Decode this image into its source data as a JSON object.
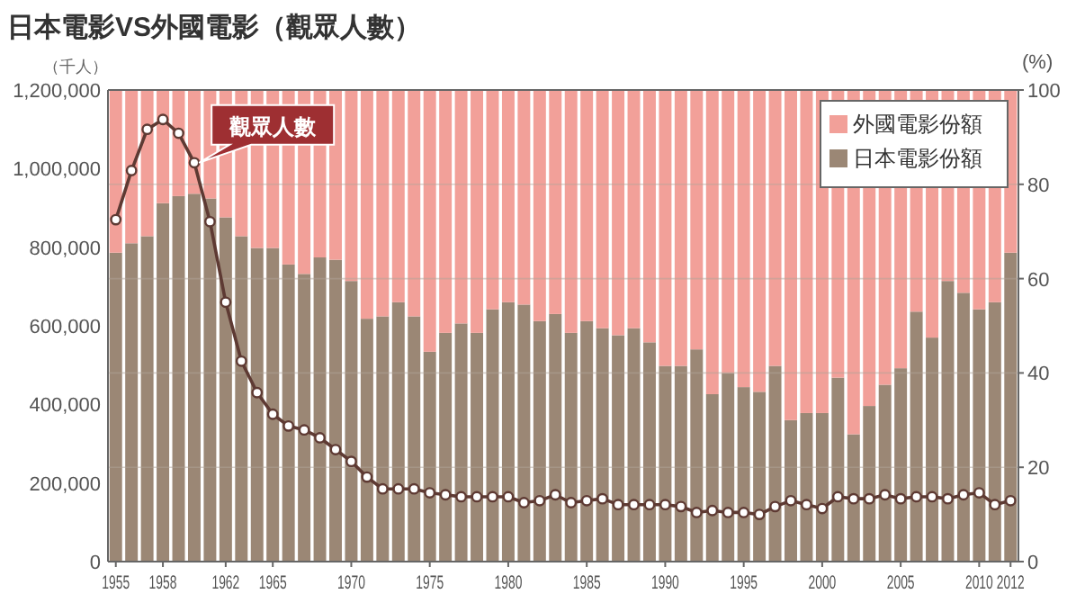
{
  "chart_data": {
    "type": "bar",
    "title": "日本電影VS外國電影（觀眾人數）",
    "ylabel": "（千人）",
    "y2label": "(%)",
    "x": [
      1955,
      1956,
      1957,
      1958,
      1959,
      1960,
      1961,
      1962,
      1963,
      1964,
      1965,
      1966,
      1967,
      1968,
      1969,
      1970,
      1971,
      1972,
      1973,
      1974,
      1975,
      1976,
      1977,
      1978,
      1979,
      1980,
      1981,
      1982,
      1983,
      1984,
      1985,
      1986,
      1987,
      1988,
      1989,
      1990,
      1991,
      1992,
      1993,
      1994,
      1995,
      1996,
      1997,
      1998,
      1999,
      2000,
      2001,
      2002,
      2003,
      2004,
      2005,
      2006,
      2007,
      2008,
      2009,
      2010,
      2011,
      2012
    ],
    "xlim": [
      1954.5,
      2012.5
    ],
    "xticks": [
      1955,
      1958,
      1962,
      1965,
      1970,
      1975,
      1980,
      1985,
      1990,
      1995,
      2000,
      2005,
      2010,
      2012
    ],
    "ylim": [
      0,
      1200000
    ],
    "yticks": [
      0,
      {
        "value": 200000,
        "label": "200,000"
      },
      {
        "value": 400000,
        "label": "400,000"
      },
      {
        "value": 600000,
        "label": "600,000"
      },
      {
        "value": 800000,
        "label": "800,000"
      },
      {
        "value": 1000000,
        "label": "1,000,000"
      },
      {
        "value": 1200000,
        "label": "1,200,000"
      }
    ],
    "y2lim": [
      0,
      100
    ],
    "y2ticks": [
      0,
      20,
      40,
      60,
      80,
      100
    ],
    "stacked": true,
    "grid": "y",
    "legend": "top right",
    "series": [
      {
        "name": "日本電影份額",
        "axis": "y2",
        "color": "#9b8775",
        "values": [
          65.5,
          67.5,
          69,
          76,
          77.5,
          78,
          77,
          73,
          69,
          66.5,
          66.5,
          63,
          61,
          64.5,
          64,
          59.5,
          51.5,
          52,
          55,
          52,
          44.5,
          48.5,
          50.5,
          48.5,
          53.5,
          55,
          54.5,
          51,
          52.5,
          48.5,
          51,
          49.5,
          48,
          49.5,
          46.5,
          41.5,
          41.5,
          45,
          35.5,
          40,
          37,
          36,
          41.5,
          30,
          31.5,
          31.5,
          39,
          27,
          33,
          37.5,
          41,
          53,
          47.5,
          59.5,
          57,
          53.5,
          55,
          65.5
        ]
      },
      {
        "name": "外國電影份額",
        "axis": "y2",
        "color": "#f2a099",
        "values": [
          34.5,
          32.5,
          31,
          24,
          22.5,
          22,
          23,
          27,
          31,
          33.5,
          33.5,
          37,
          39,
          35.5,
          36,
          40.5,
          48.5,
          48,
          45,
          48,
          55.5,
          51.5,
          49.5,
          51.5,
          46.5,
          45,
          45.5,
          49,
          47.5,
          51.5,
          49,
          50.5,
          52,
          50.5,
          53.5,
          58.5,
          58.5,
          55,
          64.5,
          60,
          63,
          64,
          58.5,
          70,
          68.5,
          68.5,
          61,
          73,
          67,
          62.5,
          59,
          47,
          52.5,
          40.5,
          43,
          46.5,
          45,
          34.5
        ]
      },
      {
        "type": "line",
        "axis": "y",
        "color": "#5e3a33",
        "marker": "circle",
        "values": [
          870000,
          995000,
          1100000,
          1125000,
          1090000,
          1015000,
          865000,
          660000,
          510000,
          430000,
          375000,
          345000,
          335000,
          315000,
          285000,
          255000,
          215000,
          185000,
          185000,
          185000,
          175000,
          170000,
          165000,
          165000,
          165000,
          165000,
          150000,
          155000,
          170000,
          150000,
          155000,
          160000,
          145000,
          145000,
          145000,
          145000,
          140000,
          125000,
          130000,
          125000,
          125000,
          120000,
          140000,
          155000,
          145000,
          135000,
          165000,
          160000,
          160000,
          170000,
          160000,
          165000,
          165000,
          160000,
          170000,
          175000,
          145000,
          155000
        ]
      }
    ],
    "annotations": [
      {
        "text": "觀眾人數",
        "x": 1960.3,
        "y": 1015000
      }
    ]
  }
}
